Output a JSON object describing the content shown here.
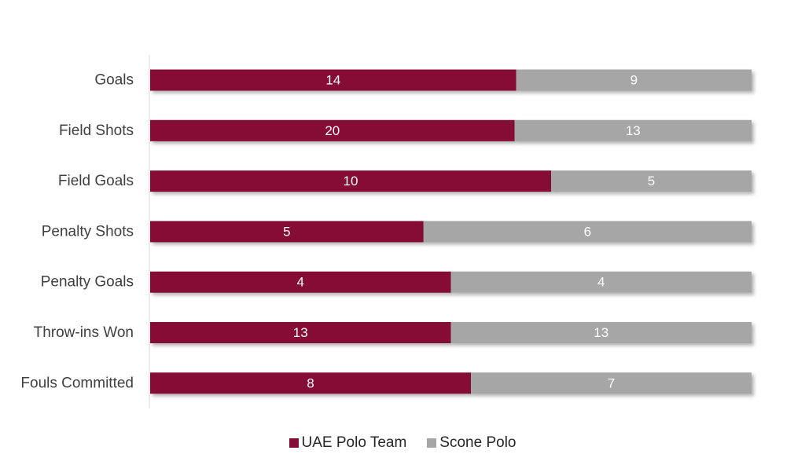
{
  "chart_data": {
    "type": "bar",
    "orientation": "horizontal",
    "stacking": "percent",
    "categories": [
      "Goals",
      "Field Shots",
      "Field Goals",
      "Penalty Shots",
      "Penalty Goals",
      "Throw-ins Won",
      "Fouls Committed"
    ],
    "series": [
      {
        "name": "UAE Polo Team",
        "color": "#850c36",
        "values": [
          14,
          20,
          10,
          5,
          4,
          13,
          8
        ]
      },
      {
        "name": "Scone Polo",
        "color": "#a6a6a6",
        "values": [
          9,
          13,
          5,
          6,
          4,
          13,
          7
        ]
      }
    ],
    "title": "",
    "xlabel": "",
    "ylabel": "",
    "grid": false,
    "legend_position": "bottom",
    "data_labels": true
  }
}
